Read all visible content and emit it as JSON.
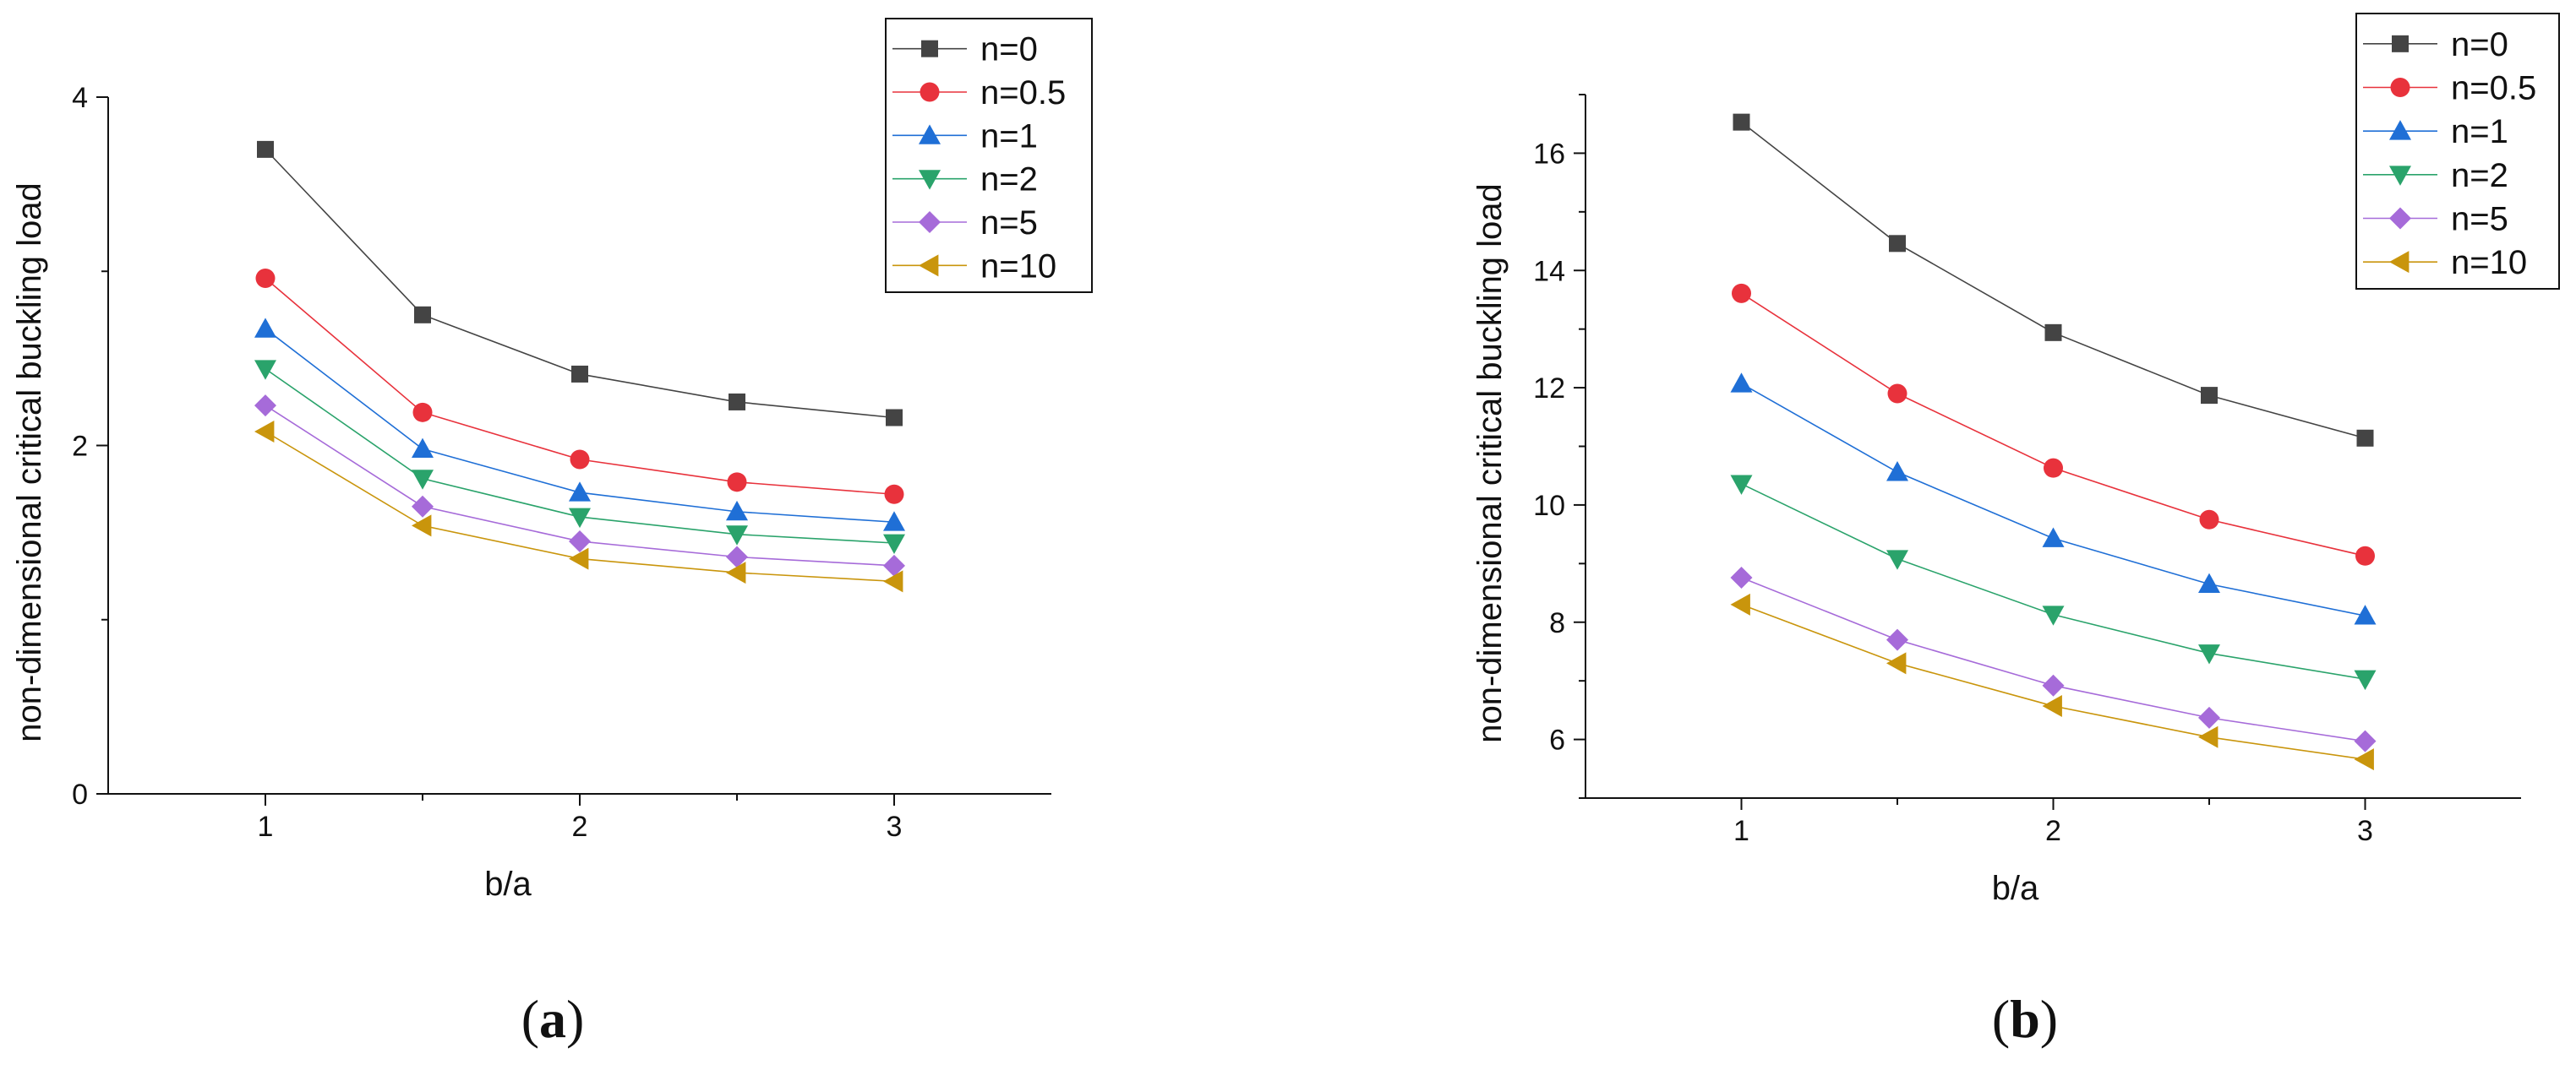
{
  "chart_data": [
    {
      "type": "line",
      "panel_label": "a",
      "xlabel": "b/a",
      "ylabel": "non-dimensional critical buckling load",
      "xlim": [
        0.5,
        3.5
      ],
      "ylim": [
        0,
        4
      ],
      "x_ticks": [
        1,
        2,
        3
      ],
      "y_ticks": [
        0,
        2,
        4
      ],
      "legend_position": "top-right",
      "x": [
        1,
        1.5,
        2,
        2.5,
        3
      ],
      "series": [
        {
          "name": "n=0",
          "marker": "square",
          "color": "#444444",
          "values": [
            3.7,
            2.75,
            2.41,
            2.25,
            2.16
          ]
        },
        {
          "name": "n=0.5",
          "marker": "circle",
          "color": "#e8323c",
          "values": [
            2.96,
            2.19,
            1.92,
            1.79,
            1.72
          ]
        },
        {
          "name": "n=1",
          "marker": "triangle-up",
          "color": "#1f6fd6",
          "values": [
            2.67,
            1.98,
            1.73,
            1.62,
            1.56
          ]
        },
        {
          "name": "n=2",
          "marker": "triangle-down",
          "color": "#2aa36b",
          "values": [
            2.44,
            1.81,
            1.59,
            1.49,
            1.44
          ]
        },
        {
          "name": "n=5",
          "marker": "diamond",
          "color": "#a66bd9",
          "values": [
            2.23,
            1.65,
            1.45,
            1.36,
            1.31
          ]
        },
        {
          "name": "n=10",
          "marker": "triangle-left",
          "color": "#c9950c",
          "values": [
            2.08,
            1.54,
            1.35,
            1.27,
            1.22
          ]
        }
      ]
    },
    {
      "type": "line",
      "panel_label": "b",
      "xlabel": "b/a",
      "ylabel": "non-dimensional critical buckling load",
      "xlim": [
        0.5,
        3.5
      ],
      "ylim": [
        5,
        17
      ],
      "x_ticks": [
        1,
        2,
        3
      ],
      "y_ticks": [
        6,
        8,
        10,
        12,
        14,
        16
      ],
      "legend_position": "top-right",
      "x": [
        1,
        1.5,
        2,
        2.5,
        3
      ],
      "series": [
        {
          "name": "n=0",
          "marker": "square",
          "color": "#444444",
          "values": [
            16.53,
            14.46,
            12.94,
            11.87,
            11.14
          ]
        },
        {
          "name": "n=0.5",
          "marker": "circle",
          "color": "#e8323c",
          "values": [
            13.61,
            11.9,
            10.63,
            9.75,
            9.13
          ]
        },
        {
          "name": "n=1",
          "marker": "triangle-up",
          "color": "#1f6fd6",
          "values": [
            12.07,
            10.56,
            9.43,
            8.65,
            8.11
          ]
        },
        {
          "name": "n=2",
          "marker": "triangle-down",
          "color": "#2aa36b",
          "values": [
            10.36,
            9.08,
            8.13,
            7.47,
            7.03
          ]
        },
        {
          "name": "n=5",
          "marker": "diamond",
          "color": "#a66bd9",
          "values": [
            8.76,
            7.7,
            6.92,
            6.37,
            5.97
          ]
        },
        {
          "name": "n=10",
          "marker": "triangle-left",
          "color": "#c9950c",
          "values": [
            8.3,
            7.3,
            6.57,
            6.04,
            5.66
          ]
        }
      ]
    }
  ]
}
